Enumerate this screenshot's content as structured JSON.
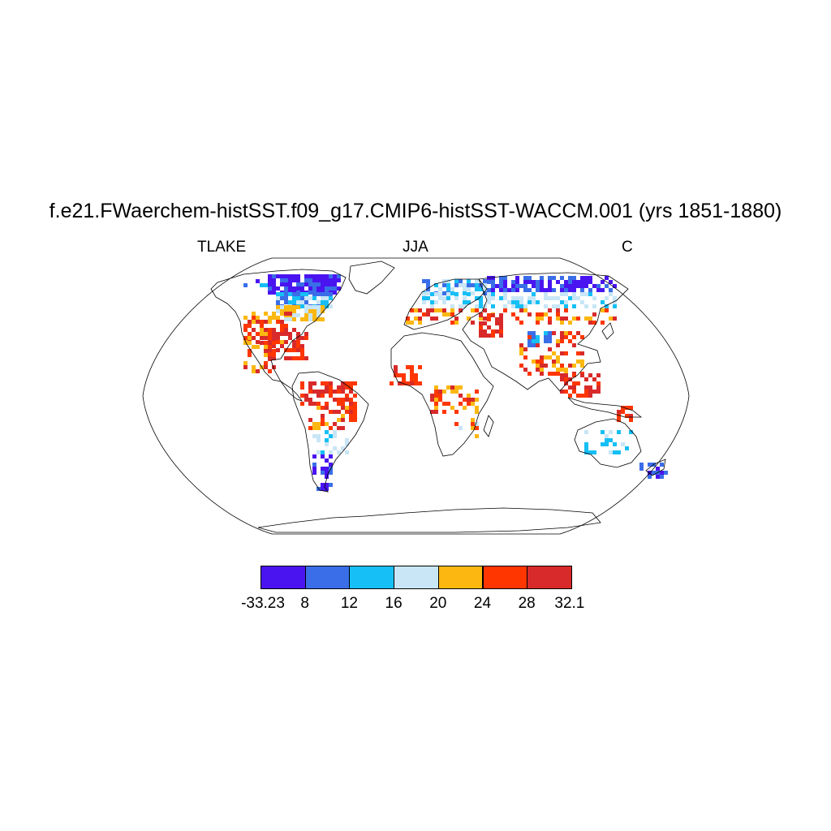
{
  "title": "f.e21.FWaerchem-histSST.f09_g17.CMIP6-histSST-WACCM.001 (yrs 1851-1880)",
  "left_label": "TLAKE",
  "center_label": "JJA",
  "right_label": "C",
  "colorbar": {
    "labels": [
      "-33.23",
      "8",
      "12",
      "16",
      "20",
      "24",
      "28",
      "32.1"
    ],
    "colors": [
      "#4a14f0",
      "#3a6ee8",
      "#16bff5",
      "#c8e6f6",
      "#fcb811",
      "#ff3600",
      "#d82a2a"
    ]
  },
  "map": {
    "projection": "Robinson",
    "ocean_color": "#ffffff",
    "coastline_color": "#000000"
  }
}
